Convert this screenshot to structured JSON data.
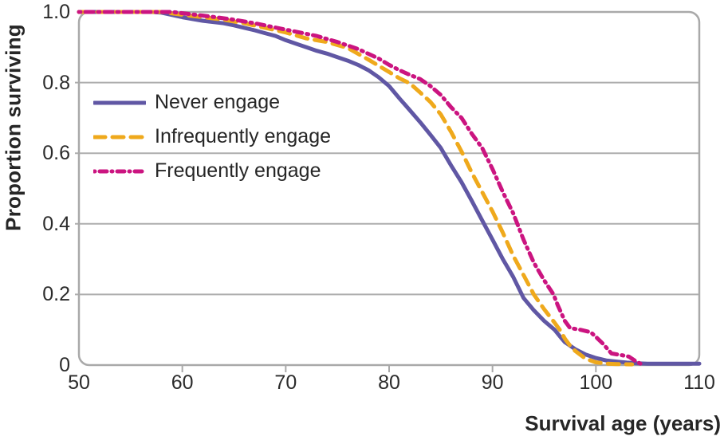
{
  "chart_data": {
    "type": "line",
    "xlabel": "Survival age (years)",
    "ylabel": "Proportion surviving",
    "xlim": [
      50,
      110
    ],
    "ylim": [
      0,
      1.0
    ],
    "x_ticks": [
      50,
      60,
      70,
      80,
      90,
      100,
      110
    ],
    "y_ticks": [
      "1.0",
      "0.8",
      "0.6",
      "0.4",
      "0.2",
      "0"
    ],
    "y_tick_values": [
      1.0,
      0.8,
      0.6,
      0.4,
      0.2,
      0
    ],
    "grid": "horizontal",
    "legend_position": "upper-left-inside",
    "style": {
      "border_color": "#a9a9a9",
      "grid_color": "#aeaeae",
      "tick_color": "#a9a9a9",
      "text_color": "#262626"
    },
    "series": [
      {
        "name": "Never engage",
        "color": "#6057A4",
        "line_style": "solid",
        "points": [
          [
            50,
            1.0
          ],
          [
            57,
            1.0
          ],
          [
            58,
            0.998
          ],
          [
            60,
            0.985
          ],
          [
            62,
            0.975
          ],
          [
            64,
            0.968
          ],
          [
            65,
            0.962
          ],
          [
            66,
            0.955
          ],
          [
            67,
            0.948
          ],
          [
            68,
            0.94
          ],
          [
            69,
            0.932
          ],
          [
            70,
            0.92
          ],
          [
            71,
            0.91
          ],
          [
            72,
            0.9
          ],
          [
            73,
            0.89
          ],
          [
            74,
            0.882
          ],
          [
            75,
            0.872
          ],
          [
            76,
            0.862
          ],
          [
            77,
            0.85
          ],
          [
            78,
            0.835
          ],
          [
            79,
            0.815
          ],
          [
            80,
            0.79
          ],
          [
            81,
            0.755
          ],
          [
            82,
            0.722
          ],
          [
            83,
            0.688
          ],
          [
            84,
            0.652
          ],
          [
            85,
            0.615
          ],
          [
            86,
            0.565
          ],
          [
            87,
            0.518
          ],
          [
            88,
            0.465
          ],
          [
            89,
            0.41
          ],
          [
            90,
            0.355
          ],
          [
            91,
            0.3
          ],
          [
            92,
            0.25
          ],
          [
            93,
            0.19
          ],
          [
            94,
            0.155
          ],
          [
            95,
            0.125
          ],
          [
            96,
            0.1
          ],
          [
            96.5,
            0.082
          ],
          [
            97,
            0.065
          ],
          [
            98,
            0.045
          ],
          [
            99,
            0.03
          ],
          [
            100,
            0.02
          ],
          [
            101,
            0.013
          ],
          [
            102,
            0.01
          ],
          [
            103,
            0.007
          ],
          [
            104,
            0.005
          ],
          [
            105,
            0.004
          ],
          [
            110,
            0.004
          ]
        ]
      },
      {
        "name": "Infrequently engage",
        "color": "#EFA91C",
        "line_style": "dashed",
        "points": [
          [
            50,
            1.0
          ],
          [
            58,
            1.0
          ],
          [
            60,
            0.992
          ],
          [
            62,
            0.985
          ],
          [
            64,
            0.978
          ],
          [
            66,
            0.968
          ],
          [
            68,
            0.955
          ],
          [
            70,
            0.942
          ],
          [
            72,
            0.925
          ],
          [
            74,
            0.915
          ],
          [
            76,
            0.898
          ],
          [
            78,
            0.865
          ],
          [
            80,
            0.83
          ],
          [
            81,
            0.812
          ],
          [
            82,
            0.798
          ],
          [
            83,
            0.772
          ],
          [
            84,
            0.745
          ],
          [
            85,
            0.71
          ],
          [
            86,
            0.66
          ],
          [
            87,
            0.605
          ],
          [
            88,
            0.545
          ],
          [
            89,
            0.49
          ],
          [
            90,
            0.435
          ],
          [
            91,
            0.375
          ],
          [
            92,
            0.31
          ],
          [
            93,
            0.255
          ],
          [
            94,
            0.2
          ],
          [
            95,
            0.158
          ],
          [
            96,
            0.12
          ],
          [
            96.5,
            0.1
          ],
          [
            97,
            0.075
          ],
          [
            97.5,
            0.055
          ],
          [
            98,
            0.04
          ],
          [
            99,
            0.018
          ],
          [
            100,
            0.008
          ],
          [
            101,
            0.004
          ],
          [
            102,
            0.003
          ],
          [
            103.5,
            0.002
          ]
        ]
      },
      {
        "name": "Frequently engage",
        "color": "#CB1480",
        "line_style": "dash-dot",
        "points": [
          [
            50,
            1.0
          ],
          [
            59,
            1.0
          ],
          [
            61,
            0.993
          ],
          [
            63,
            0.986
          ],
          [
            65,
            0.978
          ],
          [
            67,
            0.968
          ],
          [
            69,
            0.956
          ],
          [
            71,
            0.944
          ],
          [
            73,
            0.932
          ],
          [
            75,
            0.915
          ],
          [
            77,
            0.895
          ],
          [
            79,
            0.868
          ],
          [
            80,
            0.85
          ],
          [
            81,
            0.835
          ],
          [
            82,
            0.822
          ],
          [
            83,
            0.81
          ],
          [
            84,
            0.79
          ],
          [
            85,
            0.765
          ],
          [
            86,
            0.73
          ],
          [
            87,
            0.7
          ],
          [
            88,
            0.655
          ],
          [
            89,
            0.615
          ],
          [
            90,
            0.555
          ],
          [
            91,
            0.49
          ],
          [
            92,
            0.43
          ],
          [
            93,
            0.355
          ],
          [
            94,
            0.29
          ],
          [
            95,
            0.24
          ],
          [
            95.9,
            0.2
          ],
          [
            96.3,
            0.17
          ],
          [
            97,
            0.125
          ],
          [
            97.5,
            0.105
          ],
          [
            98.5,
            0.1
          ],
          [
            99.5,
            0.093
          ],
          [
            100,
            0.08
          ],
          [
            100.7,
            0.06
          ],
          [
            101,
            0.05
          ],
          [
            101.5,
            0.033
          ],
          [
            102.5,
            0.028
          ],
          [
            103.2,
            0.024
          ],
          [
            103.8,
            0.012
          ],
          [
            104.3,
            0.004
          ],
          [
            104.6,
            0.0
          ]
        ]
      }
    ]
  }
}
